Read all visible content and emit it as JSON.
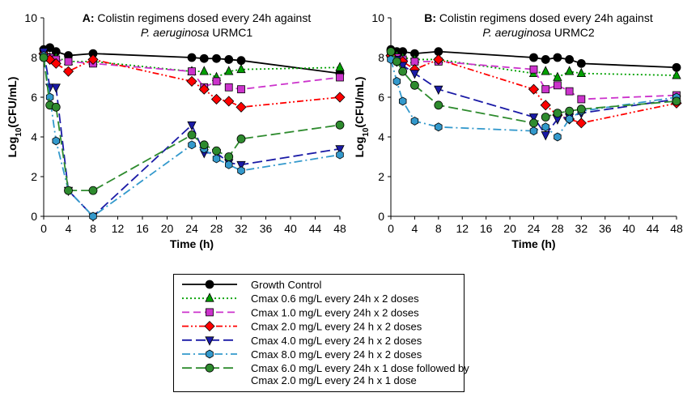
{
  "chart_data": [
    {
      "type": "line",
      "title_bold": "A:",
      "title_rest": " Colistin regimens dosed every 24h against",
      "title_line2_italic": "P. aeruginosa",
      "title_line2_rest": " URMC1",
      "xlabel": "Time (h)",
      "ylabel": "Log10(CFU/mL)",
      "xlim": [
        0,
        48
      ],
      "ylim": [
        0,
        10
      ],
      "xticks": [
        0,
        4,
        8,
        12,
        16,
        20,
        24,
        28,
        32,
        36,
        40,
        44,
        48
      ],
      "yticks": [
        0,
        2,
        4,
        6,
        8,
        10
      ],
      "grid": false,
      "series": [
        {
          "name": "Growth Control",
          "x": [
            0,
            1,
            2,
            4,
            8,
            24,
            26,
            28,
            30,
            32,
            48
          ],
          "y": [
            8.4,
            8.5,
            8.3,
            8.1,
            8.2,
            8.0,
            7.95,
            7.95,
            7.9,
            7.85,
            7.2
          ]
        },
        {
          "name": "Cmax 0.6 mg/L every 24h x 2 doses",
          "x": [
            0,
            1,
            2,
            4,
            8,
            24,
            26,
            28,
            30,
            32,
            48
          ],
          "y": [
            8.3,
            8.0,
            8.0,
            7.8,
            7.8,
            7.3,
            7.3,
            7.0,
            7.3,
            7.4,
            7.5
          ]
        },
        {
          "name": "Cmax 1.0 mg/L every 24h x 2 doses",
          "x": [
            0,
            1,
            2,
            4,
            8,
            24,
            26,
            28,
            30,
            32,
            48
          ],
          "y": [
            8.1,
            8.0,
            7.9,
            7.8,
            7.7,
            7.3,
            6.5,
            6.8,
            6.5,
            6.4,
            7.0
          ]
        },
        {
          "name": "Cmax 2.0 mg/L every 24 h x 2 doses",
          "x": [
            0,
            1,
            2,
            4,
            8,
            24,
            26,
            28,
            30,
            32,
            48
          ],
          "y": [
            8.2,
            7.9,
            7.7,
            7.3,
            7.9,
            6.8,
            6.4,
            5.9,
            5.8,
            5.5,
            6.0
          ]
        },
        {
          "name": "Cmax 4.0 mg/L every 24 h x 2 doses",
          "x": [
            0,
            1,
            2,
            4,
            8,
            24,
            26,
            28,
            30,
            32,
            48
          ],
          "y": [
            8.3,
            6.5,
            6.5,
            1.3,
            0.0,
            4.6,
            3.2,
            3.2,
            2.7,
            2.6,
            3.4
          ]
        },
        {
          "name": "Cmax 8.0 mg/L every 24 h x 2 doses",
          "x": [
            0,
            1,
            2,
            4,
            8,
            24,
            26,
            28,
            30,
            32,
            48
          ],
          "y": [
            8.1,
            6.0,
            3.8,
            1.3,
            0.0,
            3.6,
            3.4,
            2.9,
            2.6,
            2.3,
            3.1
          ]
        },
        {
          "name": "Cmax 6.0 mg/L every 24h x 1 dose followed by Cmax 2.0 mg/L every 24 h x 1 dose",
          "x": [
            0,
            1,
            2,
            4,
            8,
            24,
            26,
            28,
            30,
            32,
            48
          ],
          "y": [
            8.0,
            5.6,
            5.5,
            1.3,
            1.3,
            4.1,
            3.6,
            3.3,
            3.0,
            3.9,
            4.6
          ]
        }
      ]
    },
    {
      "type": "line",
      "title_bold": "B:",
      "title_rest": " Colistin regimens dosed every 24h against",
      "title_line2_italic": "P. aeruginosa",
      "title_line2_rest": " URMC2",
      "xlabel": "Time (h)",
      "ylabel": "Log10(CFU/mL)",
      "xlim": [
        0,
        48
      ],
      "ylim": [
        0,
        10
      ],
      "xticks": [
        0,
        4,
        8,
        12,
        16,
        20,
        24,
        28,
        32,
        36,
        40,
        44,
        48
      ],
      "yticks": [
        0,
        2,
        4,
        6,
        8,
        10
      ],
      "grid": false,
      "series": [
        {
          "name": "Growth Control",
          "x": [
            0,
            1,
            2,
            4,
            8,
            24,
            26,
            28,
            30,
            32,
            48
          ],
          "y": [
            8.4,
            8.3,
            8.3,
            8.2,
            8.3,
            8.0,
            7.9,
            8.0,
            7.9,
            7.7,
            7.5
          ]
        },
        {
          "name": "Cmax 0.6 mg/L every 24h x 2 doses",
          "x": [
            0,
            1,
            2,
            4,
            8,
            24,
            26,
            28,
            30,
            32,
            48
          ],
          "y": [
            8.2,
            8.1,
            8.0,
            7.9,
            7.9,
            7.2,
            7.3,
            7.0,
            7.3,
            7.2,
            7.1
          ]
        },
        {
          "name": "Cmax 1.0 mg/L every 24h x 2 doses",
          "x": [
            0,
            1,
            2,
            4,
            8,
            24,
            26,
            28,
            30,
            32,
            48
          ],
          "y": [
            8.2,
            8.0,
            7.9,
            7.8,
            7.8,
            7.4,
            6.4,
            6.6,
            6.3,
            5.9,
            6.1
          ]
        },
        {
          "name": "Cmax 2.0 mg/L every 24 h x 2 doses",
          "x": [
            0,
            1,
            2,
            4,
            8,
            24,
            26,
            28,
            30,
            32,
            48
          ],
          "y": [
            8.1,
            7.8,
            7.8,
            7.4,
            7.9,
            6.4,
            5.6,
            5.1,
            4.9,
            4.7,
            5.7
          ]
        },
        {
          "name": "Cmax 4.0 mg/L every 24 h x 2 doses",
          "x": [
            0,
            1,
            2,
            4,
            8,
            24,
            26,
            28,
            30,
            32,
            48
          ],
          "y": [
            8.2,
            7.9,
            7.6,
            7.2,
            6.4,
            5.0,
            4.1,
            4.9,
            5.0,
            5.2,
            5.9
          ]
        },
        {
          "name": "Cmax 8.0 mg/L every 24 h x 2 doses",
          "x": [
            0,
            1,
            2,
            4,
            8,
            24,
            26,
            28,
            30,
            32,
            48
          ],
          "y": [
            7.9,
            6.8,
            5.8,
            4.8,
            4.5,
            4.3,
            4.5,
            4.0,
            4.9,
            5.3,
            6.0
          ]
        },
        {
          "name": "Cmax 6.0 mg/L every 24h x 1 dose followed by Cmax 2.0 mg/L every 24 h x 1 dose",
          "x": [
            0,
            1,
            2,
            4,
            8,
            24,
            26,
            28,
            30,
            32,
            48
          ],
          "y": [
            8.3,
            7.8,
            7.3,
            6.6,
            5.6,
            4.7,
            5.0,
            5.2,
            5.3,
            5.4,
            5.8
          ]
        }
      ]
    }
  ],
  "legend": {
    "entries": [
      {
        "label": "Growth Control",
        "color": "#000000",
        "dash": "solid",
        "marker": "circle"
      },
      {
        "label": "Cmax 0.6 mg/L every 24h x 2 doses",
        "color": "#00a000",
        "dash": "dotted",
        "marker": "triangle-up"
      },
      {
        "label": "Cmax 1.0 mg/L every 24h x 2 doses",
        "color": "#cc33cc",
        "dash": "dash",
        "marker": "square"
      },
      {
        "label": "Cmax 2.0 mg/L every 24 h x 2 doses",
        "color": "#ff0000",
        "dash": "dashdotdot",
        "marker": "diamond"
      },
      {
        "label": "Cmax 4.0 mg/L every 24 h x 2 doses",
        "color": "#1a1aa6",
        "dash": "longdash",
        "marker": "triangle-down"
      },
      {
        "label": "Cmax 8.0 mg/L every 24 h x 2 doses",
        "color": "#3399cc",
        "dash": "dashdot",
        "marker": "hexagon"
      },
      {
        "label": "Cmax 6.0 mg/L every 24h x 1 dose followed by",
        "label2": "Cmax 2.0 mg/L every 24 h x 1 dose",
        "color": "#2e8b2e",
        "dash": "longdash",
        "marker": "circle"
      }
    ]
  }
}
